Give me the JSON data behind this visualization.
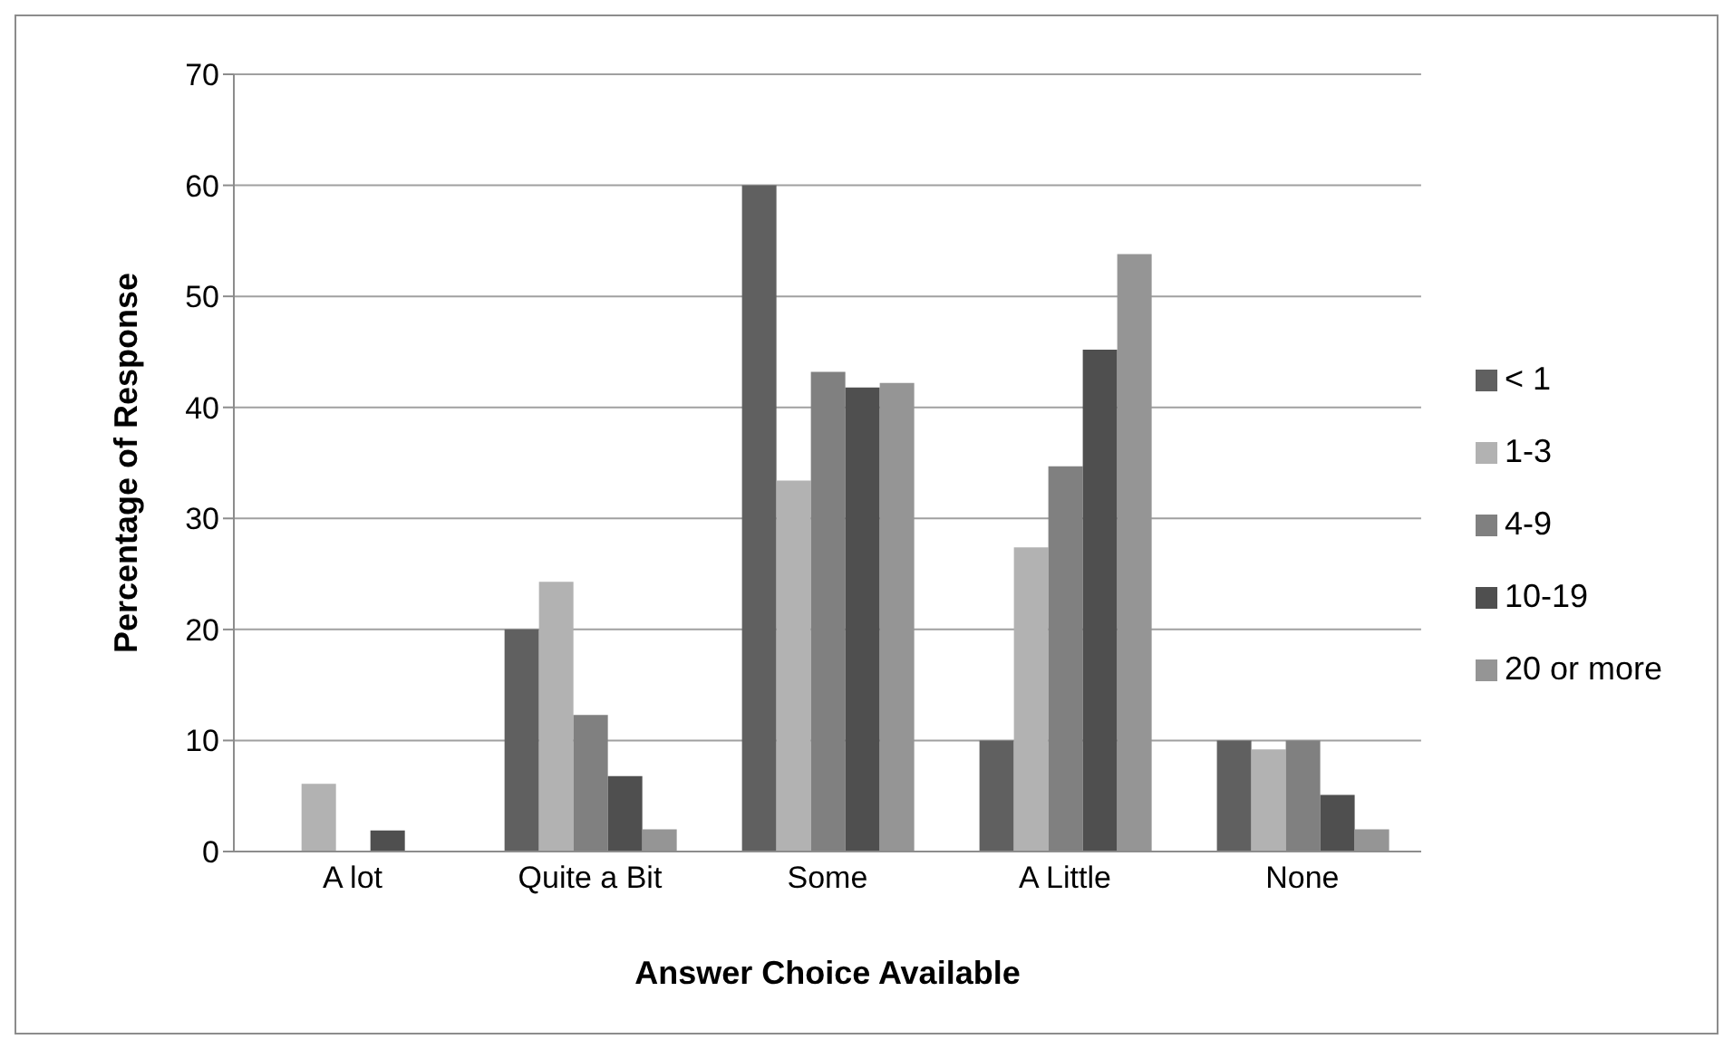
{
  "chart_data": {
    "type": "bar",
    "xlabel": "Answer Choice Available",
    "ylabel": "Percentage of Response",
    "categories": [
      "A lot",
      "Quite a Bit",
      "Some",
      "A Little",
      "None"
    ],
    "series": [
      {
        "name": "< 1",
        "color": "#606060",
        "values": [
          0,
          20,
          60,
          10,
          10
        ]
      },
      {
        "name": "1-3",
        "color": "#b2b2b2",
        "values": [
          6.1,
          24.3,
          33.4,
          27.4,
          9.2
        ]
      },
      {
        "name": "4-9",
        "color": "#808080",
        "values": [
          0,
          12.3,
          43.2,
          34.7,
          10
        ]
      },
      {
        "name": "10-19",
        "color": "#4f4f4f",
        "values": [
          1.9,
          6.8,
          41.8,
          45.2,
          5.1
        ]
      },
      {
        "name": "20 or more",
        "color": "#959595",
        "values": [
          0,
          2,
          42.2,
          53.8,
          2
        ]
      }
    ],
    "ylim": [
      0,
      70
    ],
    "yticks": [
      0,
      10,
      20,
      30,
      40,
      50,
      60,
      70
    ],
    "grid": "y",
    "legend": "right"
  }
}
